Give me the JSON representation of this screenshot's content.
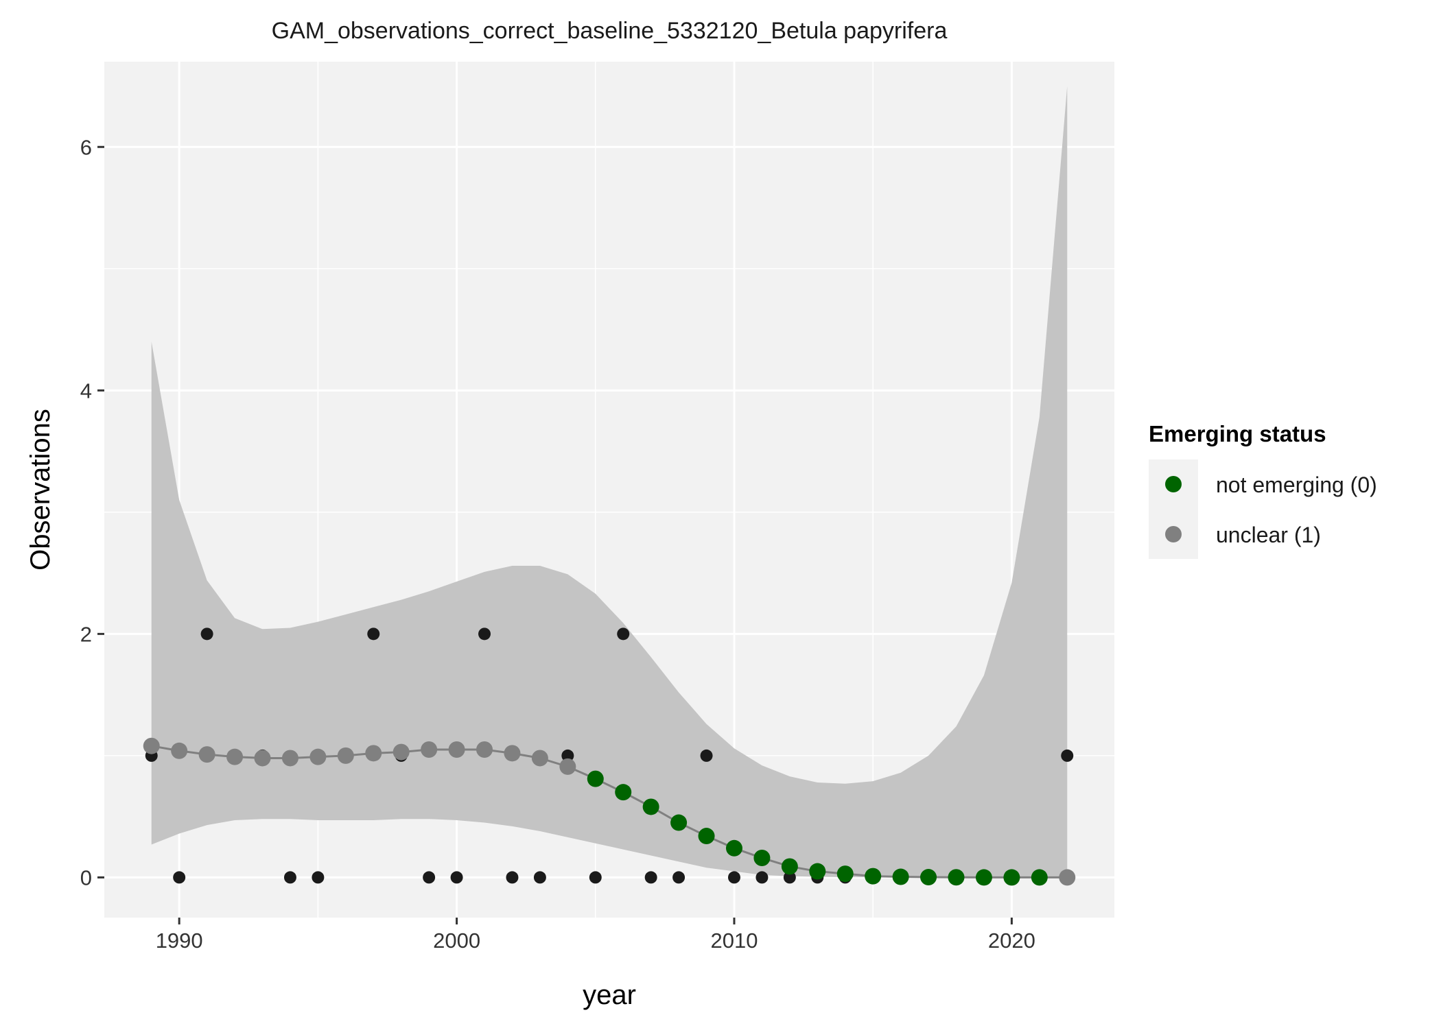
{
  "chart_data": {
    "type": "scatter",
    "title": "GAM_observations_correct_baseline_5332120_Betula papyrifera",
    "xlabel": "year",
    "ylabel": "Observations",
    "xlim": [
      1987.3,
      2023.7
    ],
    "ylim": [
      -0.33,
      6.7
    ],
    "x_ticks": [
      1990,
      2000,
      2010,
      2020
    ],
    "y_ticks": [
      0,
      2,
      4,
      6
    ],
    "x_minor": [
      1995,
      2005,
      2015
    ],
    "y_minor": [
      1,
      3,
      5
    ],
    "grid": true,
    "legend": {
      "title": "Emerging status",
      "position": "right",
      "entries": [
        {
          "label": "not emerging (0)",
          "color": "#006400"
        },
        {
          "label": "unclear (1)",
          "color": "#808080"
        }
      ]
    },
    "colors": {
      "panel": "#f2f2f2",
      "grid": "#ffffff",
      "ribbon": "#c4c4c4",
      "line": "#808080",
      "observed": "#1a1a1a",
      "not_emerging": "#006400",
      "unclear": "#808080"
    },
    "observed": {
      "x": [
        1989,
        1990,
        1991,
        1993,
        1994,
        1995,
        1997,
        1998,
        1999,
        2000,
        2001,
        2002,
        2003,
        2004,
        2005,
        2006,
        2007,
        2008,
        2009,
        2010,
        2011,
        2012,
        2013,
        2014,
        2022
      ],
      "y": [
        1,
        0,
        2,
        1,
        0,
        0,
        2,
        1,
        0,
        0,
        2,
        0,
        0,
        1,
        0,
        2,
        0,
        0,
        1,
        0,
        0,
        0,
        0,
        0,
        1
      ]
    },
    "fit": {
      "x": [
        1989,
        1990,
        1991,
        1992,
        1993,
        1994,
        1995,
        1996,
        1997,
        1998,
        1999,
        2000,
        2001,
        2002,
        2003,
        2004,
        2005,
        2006,
        2007,
        2008,
        2009,
        2010,
        2011,
        2012,
        2013,
        2014,
        2015,
        2016,
        2017,
        2018,
        2019,
        2020,
        2021,
        2022
      ],
      "y": [
        1.08,
        1.04,
        1.01,
        0.99,
        0.98,
        0.98,
        0.99,
        1.0,
        1.02,
        1.03,
        1.05,
        1.05,
        1.05,
        1.02,
        0.98,
        0.91,
        0.81,
        0.7,
        0.58,
        0.45,
        0.34,
        0.24,
        0.16,
        0.09,
        0.05,
        0.03,
        0.01,
        0.005,
        0.002,
        0.001,
        0.0,
        0.0,
        0.0,
        0.0
      ],
      "lower": [
        0.27,
        0.36,
        0.43,
        0.47,
        0.48,
        0.48,
        0.47,
        0.47,
        0.47,
        0.48,
        0.48,
        0.47,
        0.45,
        0.42,
        0.38,
        0.33,
        0.28,
        0.23,
        0.18,
        0.13,
        0.08,
        0.05,
        0.02,
        0.01,
        0.005,
        0.002,
        0.001,
        0.0,
        0.0,
        0.0,
        0.0,
        0.0,
        0.0,
        0.0
      ],
      "upper": [
        4.4,
        3.1,
        2.44,
        2.13,
        2.04,
        2.05,
        2.1,
        2.16,
        2.22,
        2.28,
        2.35,
        2.43,
        2.51,
        2.56,
        2.56,
        2.49,
        2.33,
        2.09,
        1.81,
        1.52,
        1.26,
        1.06,
        0.92,
        0.83,
        0.78,
        0.77,
        0.79,
        0.86,
        1.0,
        1.24,
        1.66,
        2.42,
        3.78,
        6.5
      ],
      "status": [
        "unclear",
        "unclear",
        "unclear",
        "unclear",
        "unclear",
        "unclear",
        "unclear",
        "unclear",
        "unclear",
        "unclear",
        "unclear",
        "unclear",
        "unclear",
        "unclear",
        "unclear",
        "unclear",
        "not_emerging",
        "not_emerging",
        "not_emerging",
        "not_emerging",
        "not_emerging",
        "not_emerging",
        "not_emerging",
        "not_emerging",
        "not_emerging",
        "not_emerging",
        "not_emerging",
        "not_emerging",
        "not_emerging",
        "not_emerging",
        "not_emerging",
        "not_emerging",
        "not_emerging",
        "unclear"
      ]
    }
  }
}
